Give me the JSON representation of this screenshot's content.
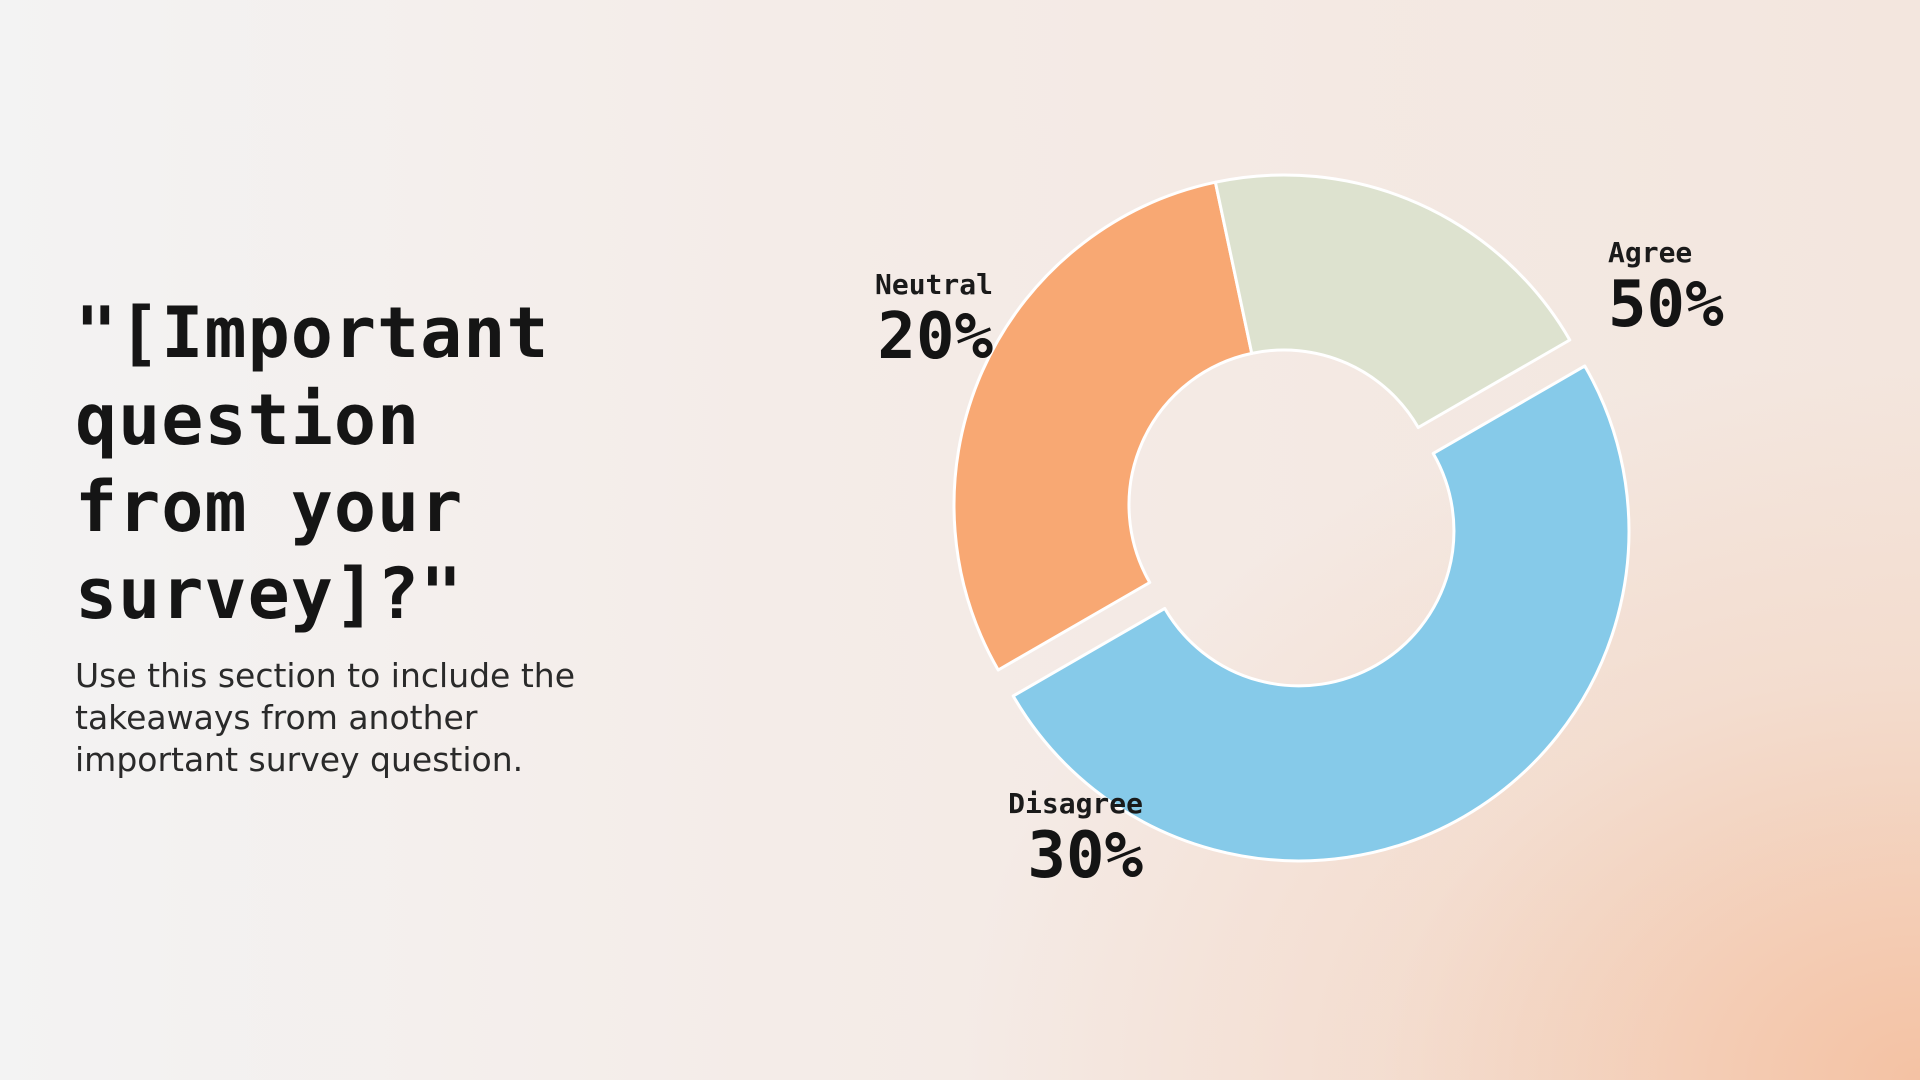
{
  "slide": {
    "question": "\"[Important question from your survey]?\"",
    "body": "Use this section to include the takeaways from another important survey question."
  },
  "chart_data": {
    "type": "pie",
    "title": "",
    "categories": [
      "Agree",
      "Disagree",
      "Neutral"
    ],
    "values": [
      50,
      30,
      20
    ],
    "value_labels": [
      "50%",
      "30%",
      "20%"
    ],
    "colors": [
      "#86cae9",
      "#f8a873",
      "#dde2cf"
    ],
    "donut": true,
    "exploded": "Agree",
    "start_angle_deg": -30,
    "legend": "none"
  }
}
